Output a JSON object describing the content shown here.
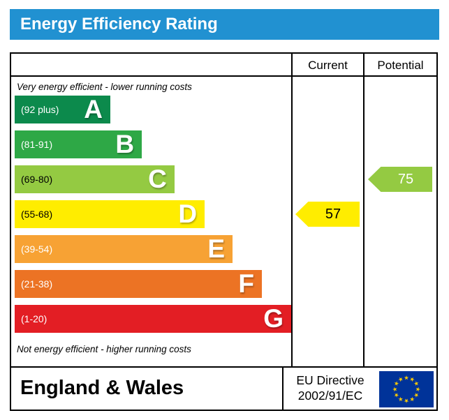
{
  "title": "Energy Efficiency Rating",
  "columns": {
    "current": "Current",
    "potential": "Potential"
  },
  "top_note": "Very energy efficient - lower running costs",
  "bottom_note": "Not energy efficient - higher running costs",
  "bands": [
    {
      "letter": "A",
      "range": "(92 plus)",
      "color": "#0c8a4c",
      "label_color": "#ffffff",
      "width_pct": 34.6
    },
    {
      "letter": "B",
      "range": "(81-91)",
      "color": "#2ea846",
      "label_color": "#ffffff",
      "width_pct": 46
    },
    {
      "letter": "C",
      "range": "(69-80)",
      "color": "#94ca42",
      "label_color": "#000000",
      "width_pct": 57.8
    },
    {
      "letter": "D",
      "range": "(55-68)",
      "color": "#ffed00",
      "label_color": "#000000",
      "width_pct": 68.7
    },
    {
      "letter": "E",
      "range": "(39-54)",
      "color": "#f7a234",
      "label_color": "#ffffff",
      "width_pct": 78.8
    },
    {
      "letter": "F",
      "range": "(21-38)",
      "color": "#ec7324",
      "label_color": "#ffffff",
      "width_pct": 89.4
    },
    {
      "letter": "G",
      "range": "(1-20)",
      "color": "#e31e24",
      "label_color": "#ffffff",
      "width_pct": 100
    }
  ],
  "current": {
    "value": "57",
    "band": "D",
    "color": "#ffed00",
    "text_color": "#000000"
  },
  "potential": {
    "value": "75",
    "band": "C",
    "color": "#94ca42",
    "text_color": "#ffffff"
  },
  "footer": {
    "region": "England & Wales",
    "directive_line1": "EU Directive",
    "directive_line2": "2002/91/EC",
    "flag": {
      "background": "#003399",
      "stars": "#ffcc00"
    }
  },
  "accent": {
    "title_bar": "#2191d1"
  },
  "chart_data": {
    "type": "bar",
    "title": "Energy Efficiency Rating",
    "categories": [
      "A",
      "B",
      "C",
      "D",
      "E",
      "F",
      "G"
    ],
    "band_ranges": [
      "92 plus",
      "81-91",
      "69-80",
      "55-68",
      "39-54",
      "21-38",
      "1-20"
    ],
    "band_colors": [
      "#0c8a4c",
      "#2ea846",
      "#94ca42",
      "#ffed00",
      "#f7a234",
      "#ec7324",
      "#e31e24"
    ],
    "series": [
      {
        "name": "Current",
        "value": 57,
        "band": "D"
      },
      {
        "name": "Potential",
        "value": 75,
        "band": "C"
      }
    ],
    "legend_position": "none",
    "notes": [
      "Very energy efficient - lower running costs",
      "Not energy efficient - higher running costs"
    ]
  }
}
